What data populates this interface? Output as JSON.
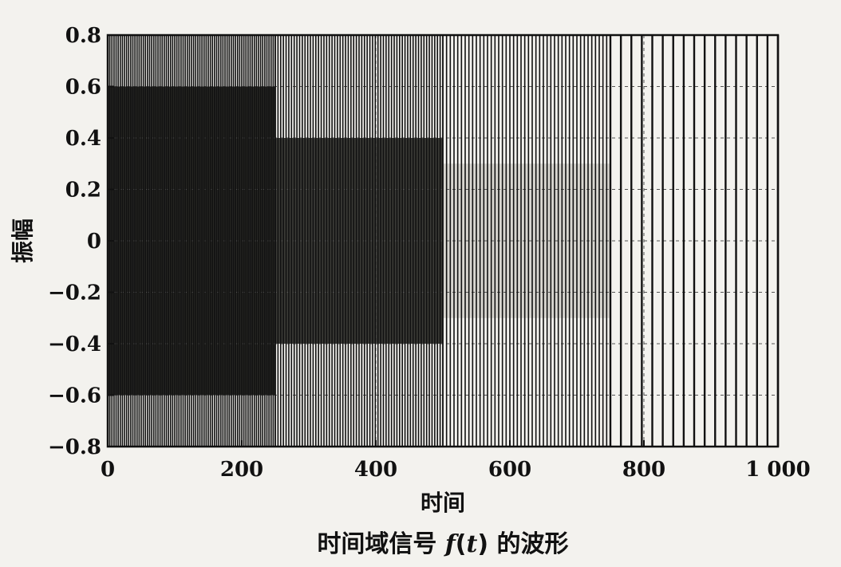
{
  "chart_data": {
    "type": "line",
    "title": "",
    "caption": {
      "prefix": "时间域信号 ",
      "fn": "f",
      "arg_open": "(",
      "arg": "t",
      "arg_close": ")",
      "suffix": " 的波形"
    },
    "xlabel": "时间",
    "ylabel": "振幅",
    "xlim": [
      0,
      1000
    ],
    "ylim": [
      -0.8,
      0.8
    ],
    "xticks": [
      0,
      200,
      400,
      600,
      800,
      1000
    ],
    "xtick_labels": [
      "0",
      "200",
      "400",
      "600",
      "800",
      "1 000"
    ],
    "yticks": [
      0.8,
      0.6,
      0.4,
      0.2,
      0,
      -0.2,
      -0.4,
      -0.6,
      -0.8
    ],
    "ytick_labels": [
      "0.8",
      "0.6",
      "0.4",
      "0.2",
      "0",
      "−0.2",
      "−0.4",
      "−0.6",
      "−0.8"
    ],
    "grid": true,
    "segments": [
      {
        "x_start": 0,
        "x_end": 250,
        "amplitude_outer": 0.8,
        "amplitude_inner": 0.6,
        "cycles": 80,
        "shade": "#2a2a26"
      },
      {
        "x_start": 250,
        "x_end": 500,
        "amplitude_outer": 0.8,
        "amplitude_inner": 0.4,
        "cycles": 62,
        "shade": "#3a3a36"
      },
      {
        "x_start": 500,
        "x_end": 750,
        "amplitude_outer": 0.8,
        "amplitude_inner": 0.3,
        "cycles": 45,
        "shade": "#d8d6d0"
      },
      {
        "x_start": 750,
        "x_end": 1000,
        "amplitude_outer": 0.8,
        "amplitude_inner": 0.8,
        "cycles": 16,
        "shade": "#f3f2ee"
      }
    ],
    "line_color": "#111111"
  }
}
